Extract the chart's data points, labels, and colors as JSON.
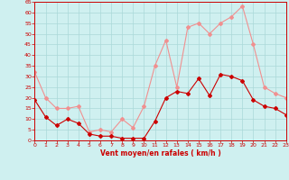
{
  "x": [
    0,
    1,
    2,
    3,
    4,
    5,
    6,
    7,
    8,
    9,
    10,
    11,
    12,
    13,
    14,
    15,
    16,
    17,
    18,
    19,
    20,
    21,
    22,
    23
  ],
  "wind_mean": [
    19,
    11,
    7,
    10,
    8,
    3,
    2,
    2,
    1,
    1,
    1,
    9,
    20,
    23,
    22,
    29,
    21,
    31,
    30,
    28,
    19,
    16,
    15,
    12
  ],
  "wind_gust": [
    32,
    20,
    15,
    15,
    16,
    4,
    5,
    4,
    10,
    6,
    16,
    35,
    47,
    25,
    53,
    55,
    50,
    55,
    58,
    63,
    45,
    25,
    22,
    20
  ],
  "ylim": [
    0,
    65
  ],
  "yticks": [
    0,
    5,
    10,
    15,
    20,
    25,
    30,
    35,
    40,
    45,
    50,
    55,
    60,
    65
  ],
  "xticks": [
    0,
    1,
    2,
    3,
    4,
    5,
    6,
    7,
    8,
    9,
    10,
    11,
    12,
    13,
    14,
    15,
    16,
    17,
    18,
    19,
    20,
    21,
    22,
    23
  ],
  "xlabel": "Vent moyen/en rafales ( km/h )",
  "bg_color": "#cff0f0",
  "grid_color": "#aad8d8",
  "mean_color": "#cc0000",
  "gust_color": "#f09090",
  "line_width": 0.8,
  "marker_size": 2.0
}
